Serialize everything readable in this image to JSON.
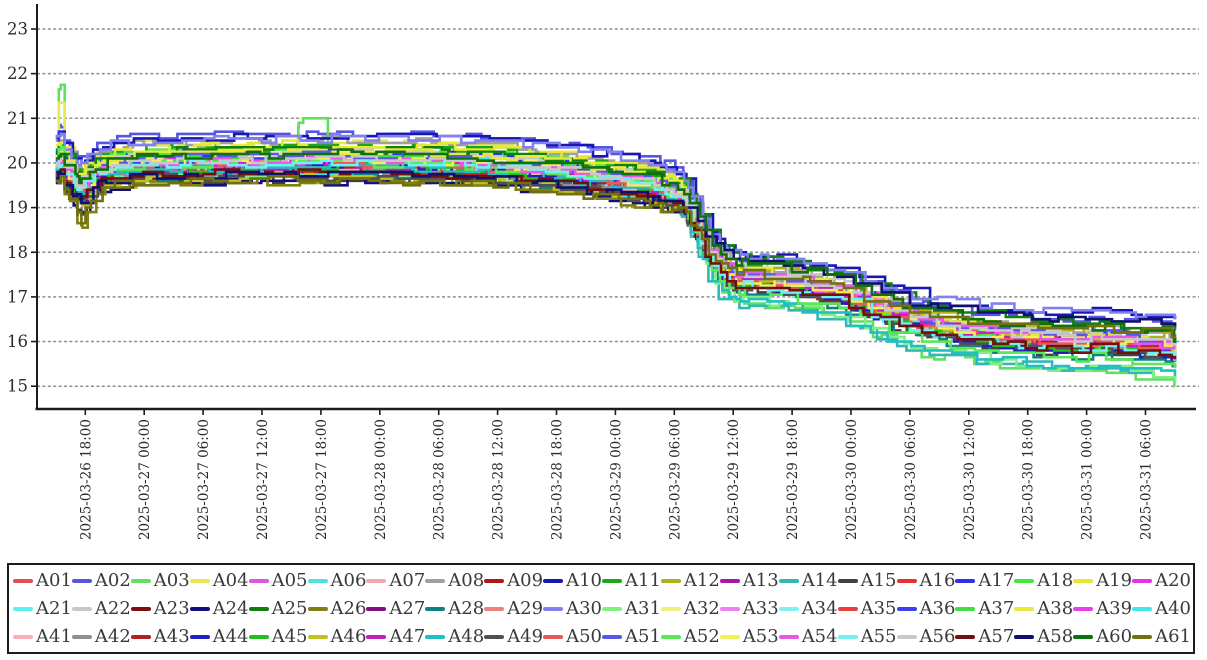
{
  "chart_data": {
    "type": "line",
    "title": "",
    "xlabel": "",
    "ylabel": "",
    "grid": "horizontal-dashed",
    "legend_position": "bottom",
    "y_ticks": [
      15,
      16,
      17,
      18,
      19,
      20,
      21,
      22,
      23
    ],
    "ylim": [
      14.7,
      23.4
    ],
    "x_tick_labels": [
      "2025-03-26 18:00",
      "2025-03-27 00:00",
      "2025-03-27 06:00",
      "2025-03-27 12:00",
      "2025-03-27 18:00",
      "2025-03-28 00:00",
      "2025-03-28 06:00",
      "2025-03-28 12:00",
      "2025-03-28 18:00",
      "2025-03-29 00:00",
      "2025-03-29 06:00",
      "2025-03-29 12:00",
      "2025-03-29 18:00",
      "2025-03-30 00:00",
      "2025-03-30 06:00",
      "2025-03-30 12:00",
      "2025-03-30 18:00",
      "2025-03-31 00:00",
      "2025-03-31 06:00"
    ],
    "time_axis": {
      "first_tick_hours": 3,
      "tick_interval_hours": 6,
      "data_start_hours": 0,
      "data_end_hours": 114
    },
    "colors": {
      "axis": "#1c1c1c",
      "grid": "#8f8f8f",
      "tick_label": "#2a2a2a"
    },
    "line_style": {
      "stroke_width": 2.6,
      "step": true,
      "jitter": 0.09,
      "quantize": 0.05
    },
    "offset_blend": {
      "plateau_until": 62,
      "drop_until": 67
    },
    "base_curve": [
      [
        0,
        19.9
      ],
      [
        0.5,
        19.95
      ],
      [
        1.2,
        19.6
      ],
      [
        2.5,
        19.35
      ],
      [
        4,
        19.7
      ],
      [
        6,
        19.85
      ],
      [
        9,
        19.9
      ],
      [
        12,
        19.9
      ],
      [
        18,
        19.93
      ],
      [
        24,
        19.95
      ],
      [
        30,
        19.95
      ],
      [
        36,
        19.93
      ],
      [
        40,
        19.9
      ],
      [
        44,
        19.85
      ],
      [
        48,
        19.78
      ],
      [
        52,
        19.68
      ],
      [
        56,
        19.55
      ],
      [
        60,
        19.42
      ],
      [
        62,
        19.3
      ],
      [
        63.5,
        19.18
      ],
      [
        64.5,
        18.9
      ],
      [
        65.5,
        18.45
      ],
      [
        66.5,
        18.0
      ],
      [
        67.5,
        17.7
      ],
      [
        69,
        17.45
      ],
      [
        72,
        17.38
      ],
      [
        76,
        17.25
      ],
      [
        80,
        17.05
      ],
      [
        84,
        16.7
      ],
      [
        87,
        16.45
      ],
      [
        90,
        16.32
      ],
      [
        93,
        16.22
      ],
      [
        96,
        16.15
      ],
      [
        100,
        16.05
      ],
      [
        104,
        16.0
      ],
      [
        106,
        16.07
      ],
      [
        108,
        16.0
      ],
      [
        110,
        15.95
      ],
      [
        112,
        15.9
      ],
      [
        114,
        15.85
      ]
    ],
    "series": [
      {
        "n": "A01",
        "c": "#e05050",
        "o1": 0.0,
        "o2": 0.0,
        "o3": 0.0
      },
      {
        "n": "A02",
        "c": "#5555e0",
        "o1": 0.72,
        "o2": 0.45,
        "o3": 0.45,
        "s": 0.25
      },
      {
        "n": "A03",
        "c": "#60e060",
        "o1": 0.35,
        "o2": -0.5,
        "o3": -0.8,
        "s": 1.75,
        "m": 0.8
      },
      {
        "n": "A04",
        "c": "#e8e850",
        "o1": 0.5,
        "o2": 0.1,
        "o3": 0.05,
        "s": 1.2
      },
      {
        "n": "A05",
        "c": "#e055e0",
        "o1": 0.2,
        "o2": 0.1,
        "o3": 0.05
      },
      {
        "n": "A06",
        "c": "#50e0e0",
        "o1": 0.15,
        "o2": -0.05,
        "o3": -0.05,
        "s": 0.7
      },
      {
        "n": "A07",
        "c": "#f0a8b0",
        "o1": 0.05,
        "o2": 0.05,
        "o3": 0.0
      },
      {
        "n": "A08",
        "c": "#a0a0a0",
        "o1": 0.55,
        "o2": 0.25,
        "o3": 0.2
      },
      {
        "n": "A09",
        "c": "#b01818",
        "o1": -0.12,
        "o2": 0.0,
        "o3": -0.12
      },
      {
        "n": "A10",
        "c": "#1818b0",
        "o1": 0.65,
        "o2": 0.55,
        "o3": 0.65
      },
      {
        "n": "A11",
        "c": "#18a818",
        "o1": 0.4,
        "o2": 0.2,
        "o3": 0.1
      },
      {
        "n": "A12",
        "c": "#b0b018",
        "o1": -0.3,
        "o2": 0.2,
        "o3": 0.25
      },
      {
        "n": "A13",
        "c": "#a818a8",
        "o1": -0.05,
        "o2": -0.1,
        "o3": -0.1
      },
      {
        "n": "A14",
        "c": "#30b8b8",
        "o1": -0.1,
        "o2": -0.65,
        "o3": -0.62
      },
      {
        "n": "A15",
        "c": "#404040",
        "o1": -0.3,
        "o2": -0.2,
        "o3": -0.3,
        "d": -0.15
      },
      {
        "n": "A16",
        "c": "#e83030",
        "o1": -0.05,
        "o2": 0.05,
        "o3": -0.05
      },
      {
        "n": "A17",
        "c": "#3030e8",
        "o1": 0.3,
        "o2": 0.0,
        "o3": 0.1,
        "s": 0.6
      },
      {
        "n": "A18",
        "c": "#40e840",
        "o1": 0.3,
        "o2": 0.0,
        "o3": -0.05
      },
      {
        "n": "A19",
        "c": "#e8e830",
        "o1": 0.45,
        "o2": 0.05,
        "o3": 0.0
      },
      {
        "n": "A20",
        "c": "#e830e8",
        "o1": 0.15,
        "o2": 0.0,
        "o3": 0.0
      },
      {
        "n": "A21",
        "c": "#60f0f0",
        "o1": -0.1,
        "o2": -0.2,
        "o3": -0.15,
        "s": 0.5
      },
      {
        "n": "A22",
        "c": "#c8c8c8",
        "o1": 0.25,
        "o2": 0.3,
        "o3": 0.1
      },
      {
        "n": "A23",
        "c": "#801010",
        "o1": -0.2,
        "o2": -0.1,
        "o3": -0.2
      },
      {
        "n": "A24",
        "c": "#101080",
        "o1": -0.35,
        "o2": -0.15,
        "o3": -0.1,
        "d": -0.2
      },
      {
        "n": "A25",
        "c": "#108010",
        "o1": 0.35,
        "o2": 0.5,
        "o3": 0.4
      },
      {
        "n": "A26",
        "c": "#808010",
        "o1": -0.38,
        "o2": -0.1,
        "o3": -0.1,
        "d": -0.45
      },
      {
        "n": "A27",
        "c": "#801080",
        "o1": -0.15,
        "o2": -0.05,
        "o3": -0.15
      },
      {
        "n": "A28",
        "c": "#108080",
        "o1": -0.2,
        "o2": -0.3,
        "o3": -0.35
      },
      {
        "n": "A29",
        "c": "#f08080",
        "o1": 0.08,
        "o2": 0.0,
        "o3": 0.05
      },
      {
        "n": "A30",
        "c": "#8080f0",
        "o1": 0.6,
        "o2": 0.5,
        "o3": 0.7
      },
      {
        "n": "A31",
        "c": "#80f080",
        "o1": -0.15,
        "o2": -0.45,
        "o3": -0.68
      },
      {
        "n": "A32",
        "c": "#f0f080",
        "o1": 0.2,
        "o2": 0.0,
        "o3": -0.05
      },
      {
        "n": "A33",
        "c": "#f080f0",
        "o1": 0.1,
        "o2": 0.05,
        "o3": -0.05
      },
      {
        "n": "A34",
        "c": "#80f0f0",
        "o1": 0.0,
        "o2": -0.1,
        "o3": -0.2
      },
      {
        "n": "A35",
        "c": "#e84040",
        "o1": -0.1,
        "o2": -0.05,
        "o3": -0.1
      },
      {
        "n": "A36",
        "c": "#4040e8",
        "o1": 0.1,
        "o2": -0.1,
        "o3": 0.0
      },
      {
        "n": "A37",
        "c": "#40e040",
        "o1": 0.15,
        "o2": -0.1,
        "o3": -0.1
      },
      {
        "n": "A38",
        "c": "#e8e840",
        "o1": 0.3,
        "o2": 0.15,
        "o3": 0.05
      },
      {
        "n": "A39",
        "c": "#e840e8",
        "o1": 0.05,
        "o2": -0.05,
        "o3": 0.0
      },
      {
        "n": "A40",
        "c": "#40e8e8",
        "o1": -0.15,
        "o2": 0.0,
        "o3": -0.1
      },
      {
        "n": "A41",
        "c": "#f8b0b8",
        "o1": -0.02,
        "o2": -0.08,
        "o3": -0.02
      },
      {
        "n": "A42",
        "c": "#909090",
        "o1": -0.12,
        "o2": -0.12,
        "o3": -0.12
      },
      {
        "n": "A43",
        "c": "#b02020",
        "o1": -0.08,
        "o2": -0.15,
        "o3": -0.08
      },
      {
        "n": "A44",
        "c": "#2020c0",
        "o1": 0.0,
        "o2": -0.2,
        "o3": -0.25
      },
      {
        "n": "A45",
        "c": "#20c020",
        "o1": -0.05,
        "o2": -0.15,
        "o3": -0.2
      },
      {
        "n": "A46",
        "c": "#c0c020",
        "o1": -0.25,
        "o2": -0.05,
        "o3": 0.0
      },
      {
        "n": "A47",
        "c": "#c020c0",
        "o1": 0.0,
        "o2": 0.0,
        "o3": -0.05
      },
      {
        "n": "A48",
        "c": "#20c0c0",
        "o1": -0.05,
        "o2": -0.55,
        "o3": -0.55
      },
      {
        "n": "A49",
        "c": "#505050",
        "o1": -0.25,
        "o2": -0.25,
        "o3": -0.25
      },
      {
        "n": "A50",
        "c": "#e85858",
        "o1": 0.05,
        "o2": -0.1,
        "o3": -0.05
      },
      {
        "n": "A51",
        "c": "#5858e8",
        "o1": 0.2,
        "o2": 0.1,
        "o3": 0.15
      },
      {
        "n": "A52",
        "c": "#58e858",
        "o1": 0.05,
        "o2": -0.3,
        "o3": -0.4,
        "s": 0.5
      },
      {
        "n": "A53",
        "c": "#f0f058",
        "o1": 0.1,
        "o2": -0.05,
        "o3": 0.0
      },
      {
        "n": "A54",
        "c": "#e858e8",
        "o1": 0.12,
        "o2": 0.08,
        "o3": 0.02
      },
      {
        "n": "A55",
        "c": "#70f0f0",
        "o1": 0.05,
        "o2": -0.15,
        "o3": -0.15
      },
      {
        "n": "A56",
        "c": "#c8c8c8",
        "o1": 0.15,
        "o2": 0.1,
        "o3": 0.05
      },
      {
        "n": "A57",
        "c": "#701010",
        "o1": -0.18,
        "o2": -0.2,
        "o3": -0.18
      },
      {
        "n": "A58",
        "c": "#101070",
        "o1": -0.2,
        "o2": 0.4,
        "o3": 0.5
      },
      {
        "n": "A60",
        "c": "#107010",
        "o1": 0.25,
        "o2": 0.35,
        "o3": 0.25
      },
      {
        "n": "A61",
        "c": "#707010",
        "o1": -0.35,
        "o2": 0.1,
        "o3": 0.3,
        "d": -0.3
      }
    ]
  },
  "legend": {
    "rows": 3,
    "columns": 20
  }
}
